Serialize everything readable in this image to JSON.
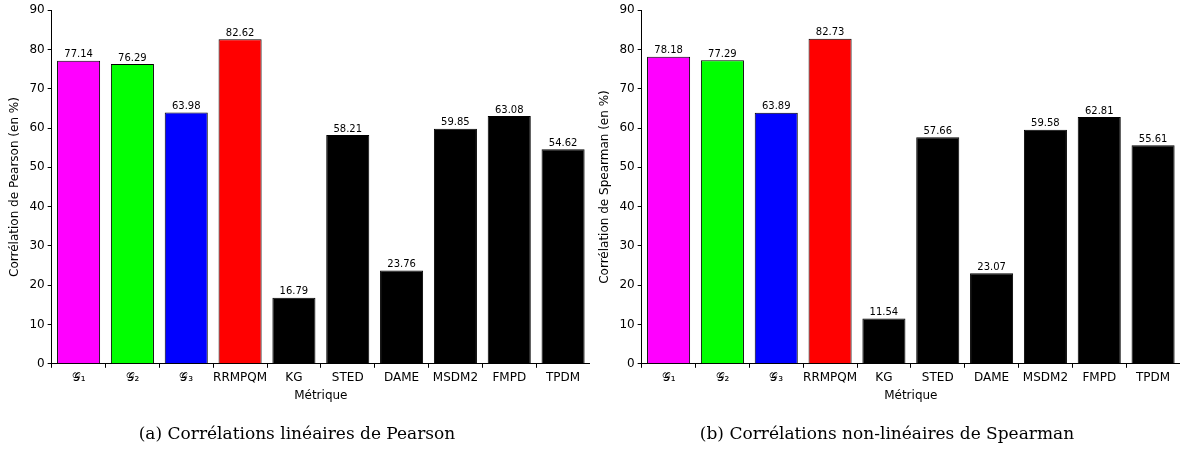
{
  "chart_data": [
    {
      "type": "bar",
      "title": "(a) Corrélations linéaires de Pearson",
      "xlabel": "Métrique",
      "ylabel": "Corrélation de Pearson (en %)",
      "categories": [
        "𝒢₁",
        "𝒢₂",
        "𝒢₃",
        "RRMPQM",
        "KG",
        "STED",
        "DAME",
        "MSDM2",
        "FMPD",
        "TPDM"
      ],
      "values": [
        77.14,
        76.29,
        63.98,
        82.62,
        16.79,
        58.21,
        23.76,
        59.85,
        63.08,
        54.62
      ],
      "colors": [
        "#ff00ff",
        "#00ff00",
        "#0000ff",
        "#ff0000",
        "#000000",
        "#000000",
        "#000000",
        "#000000",
        "#000000",
        "#000000"
      ],
      "ylim": [
        0,
        90
      ],
      "yticks": [
        0,
        10,
        20,
        30,
        40,
        50,
        60,
        70,
        80,
        90
      ],
      "grid": false,
      "legend": false,
      "data_labels": true
    },
    {
      "type": "bar",
      "title": "(b) Corrélations non-linéaires de Spearman",
      "xlabel": "Métrique",
      "ylabel": "Corrélation de Spearman (en %)",
      "categories": [
        "𝒢₁",
        "𝒢₂",
        "𝒢₃",
        "RRMPQM",
        "KG",
        "STED",
        "DAME",
        "MSDM2",
        "FMPD",
        "TPDM"
      ],
      "values": [
        78.18,
        77.29,
        63.89,
        82.73,
        11.54,
        57.66,
        23.07,
        59.58,
        62.81,
        55.61
      ],
      "colors": [
        "#ff00ff",
        "#00ff00",
        "#0000ff",
        "#ff0000",
        "#000000",
        "#000000",
        "#000000",
        "#000000",
        "#000000",
        "#000000"
      ],
      "ylim": [
        0,
        90
      ],
      "yticks": [
        0,
        10,
        20,
        30,
        40,
        50,
        60,
        70,
        80,
        90
      ],
      "grid": false,
      "legend": false,
      "data_labels": true
    }
  ]
}
